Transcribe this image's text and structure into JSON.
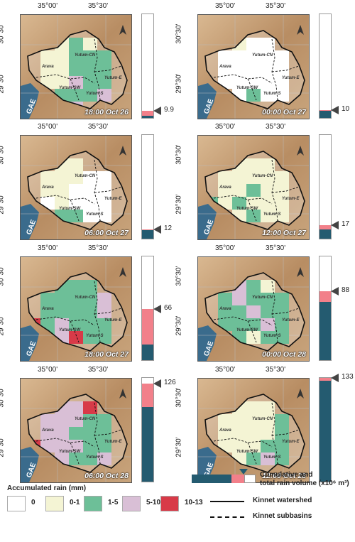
{
  "labels": {
    "lon1": "35°00'",
    "lon2": "35°30'",
    "lat1": "30°30'",
    "lat2": "29°30'",
    "gae": "GAE",
    "arava": "Arava",
    "yutum_cn": "Yutum-CN",
    "yutum_e": "Yutum-E",
    "yutum_sw": "Yutum-SW",
    "yutum_s": "Yutum-S"
  },
  "panels": [
    {
      "time": "18:00 Oct 26",
      "volume": "9.9",
      "cum_frac": 0.02,
      "tot_frac": 0.068
    },
    {
      "time": "00:00 Oct 27",
      "volume": "10",
      "cum_frac": 0.07,
      "tot_frac": 0.075
    },
    {
      "time": "06:00 Oct 27",
      "volume": "12",
      "cum_frac": 0.08,
      "tot_frac": 0.09
    },
    {
      "time": "12:00 Oct 27",
      "volume": "17",
      "cum_frac": 0.09,
      "tot_frac": 0.128
    },
    {
      "time": "18:00 Oct 27",
      "volume": "66",
      "cum_frac": 0.15,
      "tot_frac": 0.496
    },
    {
      "time": "00:00 Oct 28",
      "volume": "88",
      "cum_frac": 0.56,
      "tot_frac": 0.662
    },
    {
      "time": "06:00 Oct 28",
      "volume": "126",
      "cum_frac": 0.72,
      "tot_frac": 0.947
    },
    {
      "time": "12:00 Oct 28",
      "volume": "133",
      "cum_frac": 0.97,
      "tot_frac": 1.0
    }
  ],
  "colors": {
    "c0": "#ffffff",
    "c1": "#f4f4d4",
    "c2": "#6dbf98",
    "c3": "#d9bfd6",
    "c4": "#d83a48",
    "cum": "#245b70",
    "tot": "#f2808a",
    "sea": "#3a6b8c",
    "land": "#c9a67f"
  },
  "legend": {
    "title": "Accumulated rain (mm)",
    "classes": [
      {
        "label": "0",
        "color": "#ffffff"
      },
      {
        "label": "0-1",
        "color": "#f4f4d4"
      },
      {
        "label": "1-5",
        "color": "#6dbf98"
      },
      {
        "label": "5-10",
        "color": "#d9bfd6"
      },
      {
        "label": "10-13",
        "color": "#d83a48"
      }
    ],
    "volume_line1": "Cumulative and",
    "volume_line2": "total rain volume (x10⁶ m³)",
    "watershed": "Kinnet watershed",
    "subbasins": "Kinnet subbasins"
  }
}
